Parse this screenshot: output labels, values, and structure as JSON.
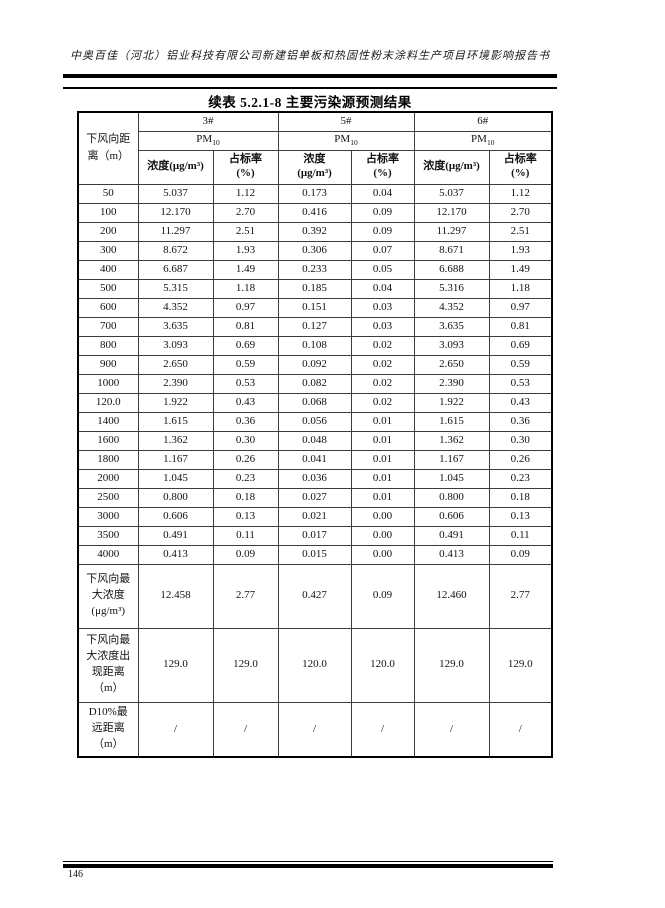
{
  "page": {
    "header_text": "中奥百佳（河北）铝业科技有限公司新建铝单板和热固性粉末涂料生产项目环境影响报告书",
    "page_number": "146"
  },
  "table": {
    "title": "续表 5.2.1-8  主要污染源预测结果",
    "corner": {
      "line1": "下风向距",
      "line2": "离（m）"
    },
    "pm": "PM",
    "pm_sub": "10",
    "groups": [
      {
        "id": "3#",
        "conc_lines": [
          "浓度(μg/m³)"
        ],
        "rate_lines": [
          "占标率",
          "(%)"
        ]
      },
      {
        "id": "5#",
        "conc_lines": [
          "浓度",
          "(μg/m³)"
        ],
        "rate_lines": [
          "占标率",
          "(%)"
        ]
      },
      {
        "id": "6#",
        "conc_lines": [
          "浓度(μg/m³)"
        ],
        "rate_lines": [
          "占标率",
          "(%)"
        ]
      }
    ],
    "rows": [
      {
        "distance": "50",
        "values": [
          "5.037",
          "1.12",
          "0.173",
          "0.04",
          "5.037",
          "1.12"
        ]
      },
      {
        "distance": "100",
        "values": [
          "12.170",
          "2.70",
          "0.416",
          "0.09",
          "12.170",
          "2.70"
        ]
      },
      {
        "distance": "200",
        "values": [
          "11.297",
          "2.51",
          "0.392",
          "0.09",
          "11.297",
          "2.51"
        ]
      },
      {
        "distance": "300",
        "values": [
          "8.672",
          "1.93",
          "0.306",
          "0.07",
          "8.671",
          "1.93"
        ]
      },
      {
        "distance": "400",
        "values": [
          "6.687",
          "1.49",
          "0.233",
          "0.05",
          "6.688",
          "1.49"
        ]
      },
      {
        "distance": "500",
        "values": [
          "5.315",
          "1.18",
          "0.185",
          "0.04",
          "5.316",
          "1.18"
        ]
      },
      {
        "distance": "600",
        "values": [
          "4.352",
          "0.97",
          "0.151",
          "0.03",
          "4.352",
          "0.97"
        ]
      },
      {
        "distance": "700",
        "values": [
          "3.635",
          "0.81",
          "0.127",
          "0.03",
          "3.635",
          "0.81"
        ]
      },
      {
        "distance": "800",
        "values": [
          "3.093",
          "0.69",
          "0.108",
          "0.02",
          "3.093",
          "0.69"
        ]
      },
      {
        "distance": "900",
        "values": [
          "2.650",
          "0.59",
          "0.092",
          "0.02",
          "2.650",
          "0.59"
        ]
      },
      {
        "distance": "1000",
        "values": [
          "2.390",
          "0.53",
          "0.082",
          "0.02",
          "2.390",
          "0.53"
        ]
      },
      {
        "distance": "120.0",
        "values": [
          "1.922",
          "0.43",
          "0.068",
          "0.02",
          "1.922",
          "0.43"
        ]
      },
      {
        "distance": "1400",
        "values": [
          "1.615",
          "0.36",
          "0.056",
          "0.01",
          "1.615",
          "0.36"
        ]
      },
      {
        "distance": "1600",
        "values": [
          "1.362",
          "0.30",
          "0.048",
          "0.01",
          "1.362",
          "0.30"
        ]
      },
      {
        "distance": "1800",
        "values": [
          "1.167",
          "0.26",
          "0.041",
          "0.01",
          "1.167",
          "0.26"
        ]
      },
      {
        "distance": "2000",
        "values": [
          "1.045",
          "0.23",
          "0.036",
          "0.01",
          "1.045",
          "0.23"
        ]
      },
      {
        "distance": "2500",
        "values": [
          "0.800",
          "0.18",
          "0.027",
          "0.01",
          "0.800",
          "0.18"
        ]
      },
      {
        "distance": "3000",
        "values": [
          "0.606",
          "0.13",
          "0.021",
          "0.00",
          "0.606",
          "0.13"
        ]
      },
      {
        "distance": "3500",
        "values": [
          "0.491",
          "0.11",
          "0.017",
          "0.00",
          "0.491",
          "0.11"
        ]
      },
      {
        "distance": "4000",
        "values": [
          "0.413",
          "0.09",
          "0.015",
          "0.00",
          "0.413",
          "0.09"
        ]
      }
    ],
    "summary_rows": [
      {
        "label_lines": [
          "下风向最",
          "大浓度",
          "(μg/m³)"
        ],
        "values": [
          "12.458",
          "2.77",
          "0.427",
          "0.09",
          "12.460",
          "2.77"
        ]
      },
      {
        "label_lines": [
          "下风向最",
          "大浓度出",
          "现距离",
          "（m）"
        ],
        "values": [
          "129.0",
          "129.0",
          "120.0",
          "120.0",
          "129.0",
          "129.0"
        ]
      },
      {
        "label_lines": [
          "D10%最",
          "远距离",
          "（m）"
        ],
        "values": [
          "/",
          "/",
          "/",
          "/",
          "/",
          "/"
        ]
      }
    ]
  }
}
